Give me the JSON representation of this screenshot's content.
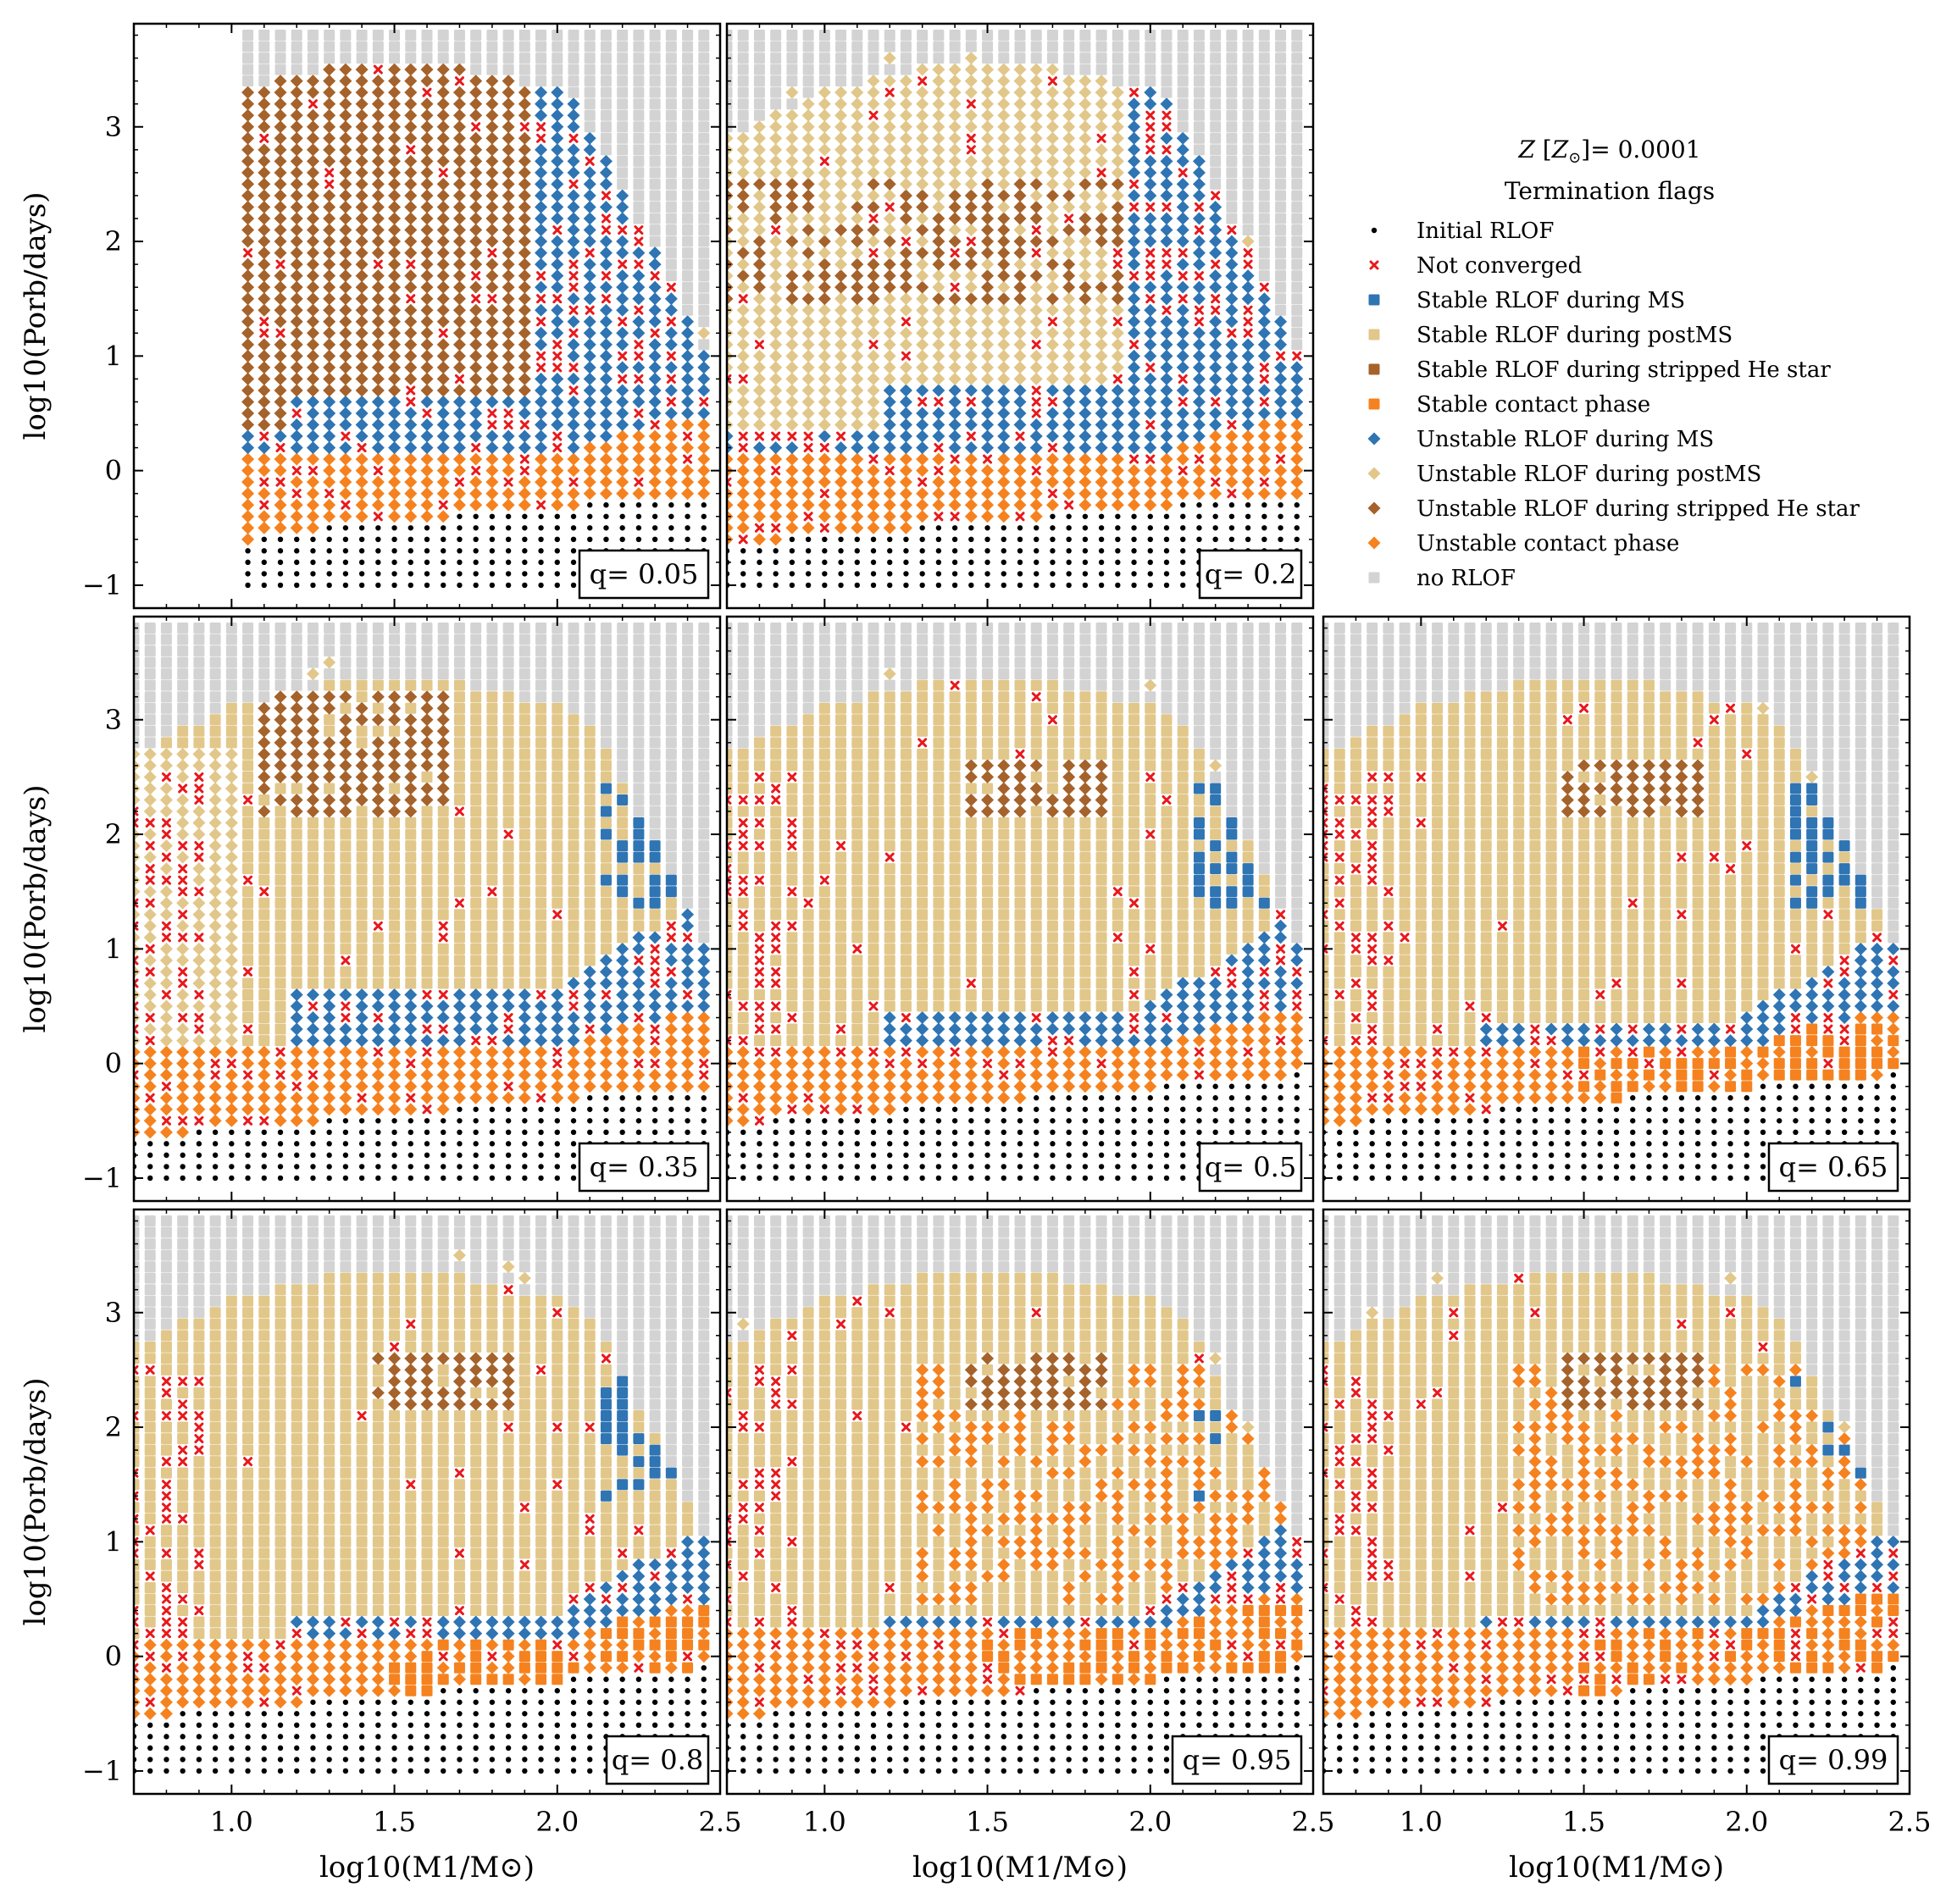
{
  "figure": {
    "legend_title": "Z [Z⊙]= 0.0001",
    "legend_subtitle": "Termination flags"
  },
  "styles": {
    "initial_rlof": {
      "label": "Initial RLOF",
      "marker": "dot",
      "color": "#000000"
    },
    "not_converged": {
      "label": "Not converged",
      "marker": "x",
      "color": "#e8191c"
    },
    "stable_ms": {
      "label": "Stable RLOF during MS",
      "marker": "square",
      "color": "#2f74b3"
    },
    "stable_postms": {
      "label": "Stable RLOF during postMS",
      "marker": "square",
      "color": "#e2c78a"
    },
    "stable_he": {
      "label": "Stable RLOF during stripped He star",
      "marker": "square",
      "color": "#a5622a"
    },
    "stable_contact": {
      "label": "Stable contact phase",
      "marker": "square",
      "color": "#f5821f"
    },
    "unstable_ms": {
      "label": "Unstable RLOF during MS",
      "marker": "diamond",
      "color": "#2f74b3"
    },
    "unstable_postms": {
      "label": "Unstable RLOF during postMS",
      "marker": "diamond",
      "color": "#e2c78a"
    },
    "unstable_he": {
      "label": "Unstable RLOF during stripped He star",
      "marker": "diamond",
      "color": "#a5622a"
    },
    "unstable_contact": {
      "label": "Unstable contact phase",
      "marker": "diamond",
      "color": "#f5821f"
    },
    "no_rlof": {
      "label": "no RLOF",
      "marker": "square",
      "color": "#d3d3d3"
    }
  },
  "chart_data": {
    "type": "scatter",
    "title": "",
    "xlabel": "log10(M1/M⊙)",
    "ylabel": "log10(Porb/days)",
    "xlim": [
      0.7,
      2.5
    ],
    "ylim": [
      -1.2,
      3.9
    ],
    "xticks": [
      1.0,
      1.5,
      2.0,
      2.5
    ],
    "xtick_labels": [
      "1.0",
      "1.5",
      "2.0",
      "2.5"
    ],
    "yticks": [
      -1,
      0,
      1,
      2,
      3
    ],
    "ytick_labels": [
      "−1",
      "0",
      "1",
      "2",
      "3"
    ],
    "grid": false,
    "legend_placement": "upper-right (empty panel)",
    "grid_x_range": [
      0.7,
      2.45,
      0.05
    ],
    "grid_y_range": [
      -1.0,
      3.8,
      0.1
    ],
    "panels": [
      {
        "q_label": "q= 0.05",
        "q": 0.05,
        "min_logM": 1.05,
        "ms_region": 0.5
      },
      {
        "q_label": "q= 0.2",
        "q": 0.2,
        "min_logM": 0.7,
        "ms_region": 0.55
      },
      {
        "q_label": "q= 0.35",
        "q": 0.35,
        "min_logM": 0.7,
        "ms_region": 0.45
      },
      {
        "q_label": "q= 0.5",
        "q": 0.5,
        "min_logM": 0.7,
        "ms_region": 0.3
      },
      {
        "q_label": "q= 0.65",
        "q": 0.65,
        "min_logM": 0.7,
        "ms_region": 0.2
      },
      {
        "q_label": "q= 0.8",
        "q": 0.8,
        "min_logM": 0.7,
        "ms_region": 0.15
      },
      {
        "q_label": "q= 0.95",
        "q": 0.95,
        "min_logM": 0.7,
        "ms_region": 0.1
      },
      {
        "q_label": "q= 0.99",
        "q": 0.99,
        "min_logM": 0.7,
        "ms_region": 0.05
      }
    ]
  }
}
